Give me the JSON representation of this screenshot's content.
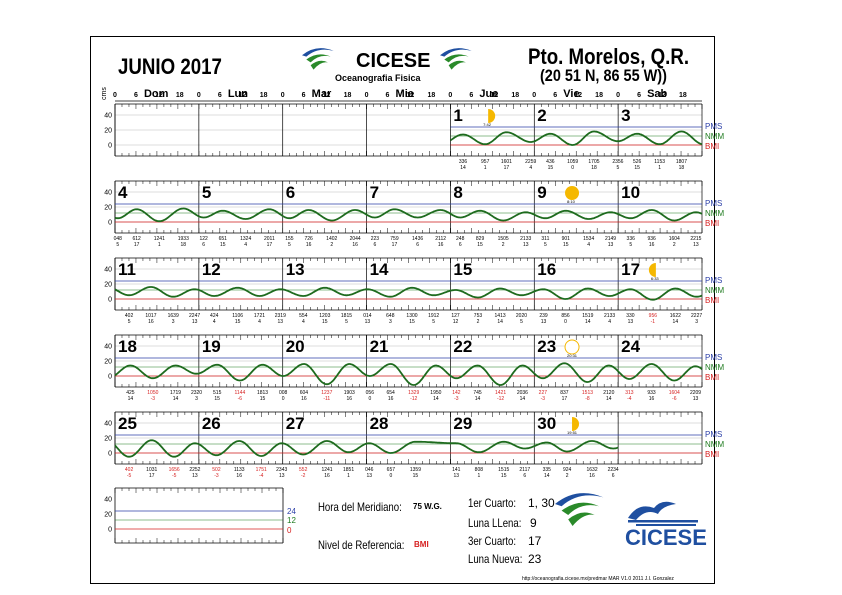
{
  "header": {
    "month_title": "JUNIO 2017",
    "org_name": "CICESE",
    "org_sub": "Oceanografia Fisica",
    "station_name": "Pto. Morelos, Q.R.",
    "station_coords": "(20 51 N, 86 55 W))"
  },
  "week_days": [
    "Dom",
    "Lun",
    "Mar",
    "Mie",
    "Jue",
    "Vie",
    "Sab"
  ],
  "hour_ticks": [
    "0",
    "6",
    "12",
    "18"
  ],
  "units_label": "cms",
  "y_ticks": [
    "40",
    "20",
    "0"
  ],
  "ref_labels": [
    "PMS",
    "NMM",
    "BMI"
  ],
  "colors": {
    "curve": "#1e6b1e",
    "pms": "#2b3fa8",
    "nmm": "#1e7a1e",
    "bmi": "#d62020",
    "moon": "#f5b800",
    "logo_blue": "#1f4fa0",
    "logo_green": "#2a8a2a"
  },
  "chart_data": {
    "type": "line",
    "title": "JUNIO 2017",
    "ylabel": "cms",
    "ylim": [
      -10,
      45
    ],
    "reference_levels": {
      "PMS": 24,
      "NMM": 12,
      "BMI": 0
    },
    "weeks": [
      {
        "day_numbers": [
          "",
          "",
          "",
          "",
          "1",
          "2",
          "3"
        ],
        "start_day": 4,
        "extremes": [
          {
            "t": "336",
            "h": "14"
          },
          {
            "t": "957",
            "h": "1"
          },
          {
            "t": "1601",
            "h": "17"
          },
          {
            "t": "2259",
            "h": "4"
          },
          {
            "t": "436",
            "h": "15"
          },
          {
            "t": "1059",
            "h": "0"
          },
          {
            "t": "1705",
            "h": "18"
          },
          {
            "t": "2356",
            "h": "5"
          },
          {
            "t": "526",
            "h": "15"
          },
          {
            "t": "1153",
            "h": "1"
          },
          {
            "t": "1807",
            "h": "18"
          }
        ]
      },
      {
        "day_numbers": [
          "4",
          "5",
          "6",
          "7",
          "8",
          "9",
          "10"
        ],
        "start_day": 0,
        "extremes": [
          {
            "t": "048",
            "h": "5"
          },
          {
            "t": "612",
            "h": "17"
          },
          {
            "t": "1241",
            "h": "1"
          },
          {
            "t": "1933",
            "h": "18"
          },
          {
            "t": "122",
            "h": "6"
          },
          {
            "t": "651",
            "h": "15"
          },
          {
            "t": "1324",
            "h": "4"
          },
          {
            "t": "2011",
            "h": "17"
          },
          {
            "t": "155",
            "h": "5"
          },
          {
            "t": "726",
            "h": "16"
          },
          {
            "t": "1402",
            "h": "2"
          },
          {
            "t": "2044",
            "h": "16"
          },
          {
            "t": "223",
            "h": "6"
          },
          {
            "t": "759",
            "h": "17"
          },
          {
            "t": "1436",
            "h": "6"
          },
          {
            "t": "2112",
            "h": "16"
          },
          {
            "t": "248",
            "h": "6"
          },
          {
            "t": "829",
            "h": "15"
          },
          {
            "t": "1505",
            "h": "2"
          },
          {
            "t": "2133",
            "h": "13"
          },
          {
            "t": "311",
            "h": "5"
          },
          {
            "t": "901",
            "h": "15"
          },
          {
            "t": "1534",
            "h": "4"
          },
          {
            "t": "2149",
            "h": "13"
          },
          {
            "t": "336",
            "h": "5"
          },
          {
            "t": "936",
            "h": "16"
          },
          {
            "t": "1604",
            "h": "2"
          },
          {
            "t": "2215",
            "h": "13"
          }
        ]
      },
      {
        "day_numbers": [
          "11",
          "12",
          "13",
          "14",
          "15",
          "16",
          "17"
        ],
        "start_day": 0,
        "extremes": [
          {
            "t": "402",
            "h": "5"
          },
          {
            "t": "1017",
            "h": "16"
          },
          {
            "t": "1639",
            "h": "3"
          },
          {
            "t": "2247",
            "h": "13"
          },
          {
            "t": "424",
            "h": "4"
          },
          {
            "t": "1106",
            "h": "15"
          },
          {
            "t": "1721",
            "h": "4"
          },
          {
            "t": "2319",
            "h": "13"
          },
          {
            "t": "554",
            "h": "4"
          },
          {
            "t": "1203",
            "h": "15"
          },
          {
            "t": "1815",
            "h": "5"
          },
          {
            "t": "014",
            "h": "13"
          },
          {
            "t": "648",
            "h": "3"
          },
          {
            "t": "1300",
            "h": "15"
          },
          {
            "t": "1912",
            "h": "5"
          },
          {
            "t": "127",
            "h": "12"
          },
          {
            "t": "753",
            "h": "2"
          },
          {
            "t": "1413",
            "h": "14"
          },
          {
            "t": "2020",
            "h": "5"
          },
          {
            "t": "239",
            "h": "13"
          },
          {
            "t": "856",
            "h": "0"
          },
          {
            "t": "1519",
            "h": "14"
          },
          {
            "t": "2133",
            "h": "4"
          },
          {
            "t": "330",
            "h": "13"
          },
          {
            "t": "956",
            "h": "-1"
          },
          {
            "t": "1622",
            "h": "14"
          },
          {
            "t": "2227",
            "h": "3"
          }
        ]
      },
      {
        "day_numbers": [
          "18",
          "19",
          "20",
          "21",
          "22",
          "23",
          "24"
        ],
        "start_day": 0,
        "extremes": [
          {
            "t": "425",
            "h": "14"
          },
          {
            "t": "1050",
            "h": "-3"
          },
          {
            "t": "1719",
            "h": "14"
          },
          {
            "t": "2320",
            "h": "3"
          },
          {
            "t": "515",
            "h": "15"
          },
          {
            "t": "1144",
            "h": "-6"
          },
          {
            "t": "1813",
            "h": "15"
          },
          {
            "t": "008",
            "h": "0"
          },
          {
            "t": "604",
            "h": "16"
          },
          {
            "t": "1237",
            "h": "-11"
          },
          {
            "t": "1903",
            "h": "16"
          },
          {
            "t": "056",
            "h": "0"
          },
          {
            "t": "654",
            "h": "16"
          },
          {
            "t": "1329",
            "h": "-12"
          },
          {
            "t": "1950",
            "h": "14"
          },
          {
            "t": "142",
            "h": "-3"
          },
          {
            "t": "745",
            "h": "14"
          },
          {
            "t": "1421",
            "h": "-12"
          },
          {
            "t": "2036",
            "h": "14"
          },
          {
            "t": "227",
            "h": "-3"
          },
          {
            "t": "837",
            "h": "17"
          },
          {
            "t": "1513",
            "h": "-8"
          },
          {
            "t": "2120",
            "h": "14"
          },
          {
            "t": "313",
            "h": "-4"
          },
          {
            "t": "933",
            "h": "16"
          },
          {
            "t": "1604",
            "h": "-6"
          },
          {
            "t": "2209",
            "h": "13"
          }
        ]
      },
      {
        "day_numbers": [
          "25",
          "26",
          "27",
          "28",
          "29",
          "30",
          ""
        ],
        "start_day": 0,
        "end_day": 6,
        "extremes": [
          {
            "t": "402",
            "h": "-5"
          },
          {
            "t": "1031",
            "h": "17"
          },
          {
            "t": "1656",
            "h": "-5"
          },
          {
            "t": "2252",
            "h": "13"
          },
          {
            "t": "502",
            "h": "-3"
          },
          {
            "t": "1133",
            "h": "16"
          },
          {
            "t": "1751",
            "h": "-4"
          },
          {
            "t": "2343",
            "h": "13"
          },
          {
            "t": "552",
            "h": "-2"
          },
          {
            "t": "1241",
            "h": "16"
          },
          {
            "t": "1851",
            "h": "1"
          },
          {
            "t": "046",
            "h": "13"
          },
          {
            "t": "657",
            "h": "0"
          },
          {
            "t": "1359",
            "h": "15"
          },
          {
            "t": "141",
            "h": "13"
          },
          {
            "t": "808",
            "h": "1"
          },
          {
            "t": "1515",
            "h": "15"
          },
          {
            "t": "2117",
            "h": "6"
          },
          {
            "t": "335",
            "h": "14"
          },
          {
            "t": "924",
            "h": "2"
          },
          {
            "t": "1632",
            "h": "16"
          },
          {
            "t": "2234",
            "h": "6"
          }
        ]
      }
    ],
    "legend_scale": [
      "24",
      "12",
      "0"
    ]
  },
  "moons": [
    {
      "week": 0,
      "day": 4,
      "kind": "first-quarter",
      "label": "7:42"
    },
    {
      "week": 1,
      "day": 5,
      "kind": "full",
      "label": "8:10"
    },
    {
      "week": 2,
      "day": 6,
      "kind": "last-quarter",
      "label": "6:33"
    },
    {
      "week": 3,
      "day": 5,
      "kind": "new",
      "label": "20:31"
    },
    {
      "week": 4,
      "day": 5,
      "kind": "first-quarter",
      "label": "19:51"
    }
  ],
  "footer": {
    "meridian_label": "Hora del Meridiano:",
    "meridian_value": "75 W.G.",
    "reference_label": "Nivel de Referencia:",
    "reference_value": "BMI",
    "phases": [
      {
        "label": "1er Cuarto:",
        "value": "1, 30"
      },
      {
        "label": "Luna LLena:",
        "value": "9"
      },
      {
        "label": "3er Cuarto:",
        "value": "17"
      },
      {
        "label": "Luna Nueva:",
        "value": "23"
      }
    ],
    "logo_text": "CICESE",
    "credit": "http://oceanografia.cicese.mx/predmar  MAR V1.0 2011 J.I. Gonzalez"
  }
}
